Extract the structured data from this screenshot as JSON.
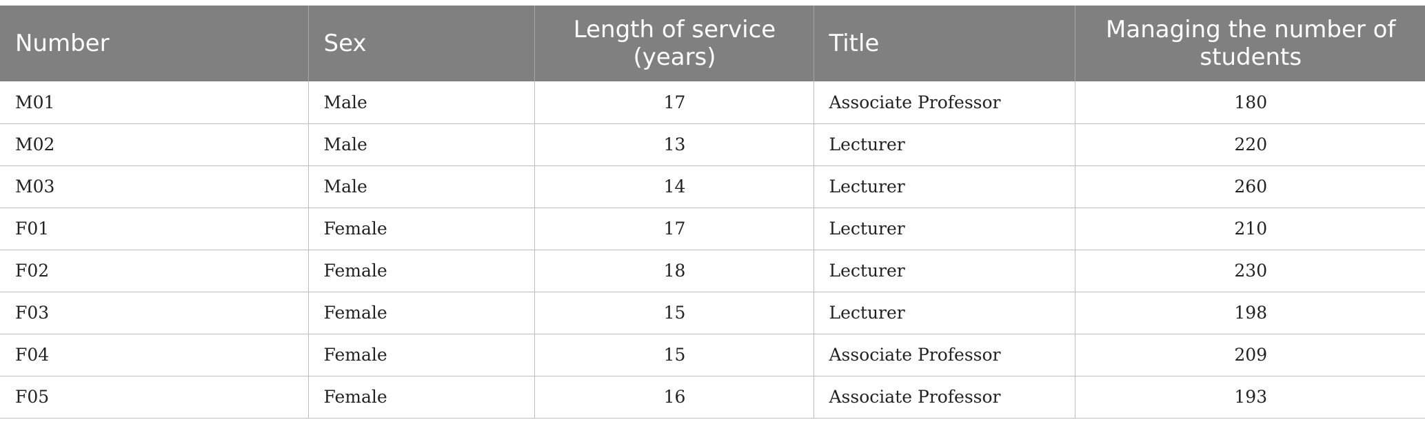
{
  "table": {
    "headers": [
      "Number",
      "Sex",
      "Length of service (years)",
      "Title",
      "Managing the number of students"
    ],
    "rows": [
      [
        "M01",
        "Male",
        "17",
        "Associate Professor",
        "180"
      ],
      [
        "M02",
        "Male",
        "13",
        "Lecturer",
        "220"
      ],
      [
        "M03",
        "Male",
        "14",
        "Lecturer",
        "260"
      ],
      [
        "F01",
        "Female",
        "17",
        "Lecturer",
        "210"
      ],
      [
        "F02",
        "Female",
        "18",
        "Lecturer",
        "230"
      ],
      [
        "F03",
        "Female",
        "15",
        "Lecturer",
        "198"
      ],
      [
        "F04",
        "Female",
        "15",
        "Associate Professor",
        "209"
      ],
      [
        "F05",
        "Female",
        "16",
        "Associate Professor",
        "193"
      ]
    ]
  },
  "colors": {
    "header_background": "#7f807f",
    "header_text": "#ffffff",
    "grid_line": "#bdbdbd"
  }
}
